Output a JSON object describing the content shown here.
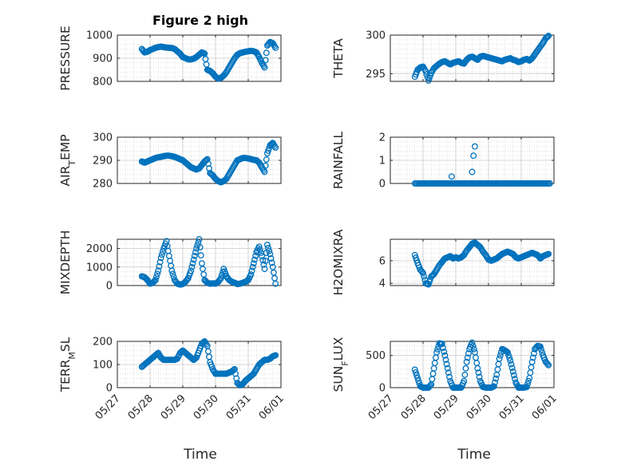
{
  "figure": {
    "title": "Figure 2 high",
    "xlabel": "Time"
  },
  "style": {
    "marker_color": "#0072bd",
    "grid_color": "#b0b0b0",
    "axis_color": "#262626"
  },
  "xaxis": {
    "range": [
      "05/27",
      "06/01"
    ],
    "ticks": [
      "05/27",
      "05/28",
      "05/29",
      "05/30",
      "05/31",
      "06/01"
    ],
    "data_start": "05/27 18:00",
    "data_end": "05/31 21:00"
  },
  "chart_data": [
    {
      "type": "scatter",
      "name": "pressure",
      "ylabel": "PRESSURE",
      "ylim": [
        800,
        1000
      ],
      "yticks": [
        "800",
        "900",
        "1000"
      ],
      "grid": true,
      "x": [
        "05/27 18:00",
        "05/27 20:00",
        "05/27 22:00",
        "05/28 00:00",
        "05/28 02:00",
        "05/28 04:00",
        "05/28 06:00",
        "05/28 08:00",
        "05/28 10:00",
        "05/28 12:00",
        "05/28 14:00",
        "05/28 16:00",
        "05/28 18:00",
        "05/28 20:00",
        "05/28 22:00",
        "05/29 00:00",
        "05/29 02:00",
        "05/29 04:00",
        "05/29 06:00",
        "05/29 08:00",
        "05/29 10:00",
        "05/29 12:00",
        "05/29 14:00",
        "05/29 16:00",
        "05/29 18:00",
        "05/29 20:00",
        "05/29 22:00",
        "05/30 00:00",
        "05/30 02:00",
        "05/30 04:00",
        "05/30 06:00",
        "05/30 08:00",
        "05/30 10:00",
        "05/30 12:00",
        "05/30 14:00",
        "05/30 16:00",
        "05/30 18:00",
        "05/30 20:00",
        "05/30 22:00",
        "05/31 00:00",
        "05/31 02:00",
        "05/31 04:00",
        "05/31 06:00",
        "05/31 08:00",
        "05/31 10:00",
        "05/31 12:00",
        "05/31 14:00",
        "05/31 16:00",
        "05/31 18:00",
        "05/31 20:00"
      ],
      "y": [
        940,
        925,
        928,
        935,
        940,
        945,
        948,
        950,
        948,
        946,
        945,
        944,
        940,
        930,
        920,
        905,
        900,
        895,
        895,
        898,
        905,
        915,
        925,
        920,
        850,
        845,
        835,
        820,
        812,
        815,
        825,
        840,
        860,
        880,
        900,
        915,
        922,
        925,
        928,
        930,
        932,
        930,
        925,
        905,
        880,
        860,
        955,
        970,
        965,
        945
      ]
    },
    {
      "type": "scatter",
      "name": "theta",
      "ylabel": "THETA",
      "ylim": [
        294,
        300
      ],
      "yticks": [
        "295",
        "300"
      ],
      "grid": true,
      "x": [
        "05/27 18:00",
        "05/27 20:00",
        "05/27 22:00",
        "05/28 00:00",
        "05/28 02:00",
        "05/28 04:00",
        "05/28 06:00",
        "05/28 08:00",
        "05/28 10:00",
        "05/28 12:00",
        "05/28 14:00",
        "05/28 16:00",
        "05/28 18:00",
        "05/28 20:00",
        "05/28 22:00",
        "05/29 00:00",
        "05/29 02:00",
        "05/29 04:00",
        "05/29 06:00",
        "05/29 08:00",
        "05/29 10:00",
        "05/29 12:00",
        "05/29 14:00",
        "05/29 16:00",
        "05/29 18:00",
        "05/29 20:00",
        "05/29 22:00",
        "05/30 00:00",
        "05/30 02:00",
        "05/30 04:00",
        "05/30 06:00",
        "05/30 08:00",
        "05/30 10:00",
        "05/30 12:00",
        "05/30 14:00",
        "05/30 16:00",
        "05/30 18:00",
        "05/30 20:00",
        "05/30 22:00",
        "05/31 00:00",
        "05/31 02:00",
        "05/31 04:00",
        "05/31 06:00",
        "05/31 08:00",
        "05/31 10:00",
        "05/31 12:00",
        "05/31 14:00",
        "05/31 16:00",
        "05/31 18:00",
        "05/31 20:00"
      ],
      "y": [
        294.6,
        295.5,
        295.8,
        295.9,
        295.3,
        294.1,
        295.1,
        295.7,
        296.0,
        296.3,
        296.5,
        296.6,
        296.4,
        296.2,
        296.4,
        296.5,
        296.6,
        296.4,
        296.3,
        296.8,
        297.1,
        297.2,
        297.0,
        296.8,
        297.2,
        297.3,
        297.2,
        297.1,
        297.0,
        296.9,
        296.8,
        296.7,
        296.6,
        296.8,
        296.9,
        297.0,
        296.8,
        296.7,
        296.5,
        296.6,
        296.8,
        296.9,
        296.7,
        297.0,
        297.5,
        298.0,
        298.5,
        299.0,
        299.6,
        299.9
      ]
    },
    {
      "type": "scatter",
      "name": "air_temp",
      "ylabel": "AIR_TEMP",
      "ylim": [
        280,
        300
      ],
      "yticks": [
        "280",
        "290",
        "300"
      ],
      "grid": true,
      "x": [
        "05/27 18:00",
        "05/27 20:00",
        "05/27 22:00",
        "05/28 00:00",
        "05/28 02:00",
        "05/28 04:00",
        "05/28 06:00",
        "05/28 08:00",
        "05/28 10:00",
        "05/28 12:00",
        "05/28 14:00",
        "05/28 16:00",
        "05/28 18:00",
        "05/28 20:00",
        "05/28 22:00",
        "05/29 00:00",
        "05/29 02:00",
        "05/29 04:00",
        "05/29 06:00",
        "05/29 08:00",
        "05/29 10:00",
        "05/29 12:00",
        "05/29 14:00",
        "05/29 16:00",
        "05/29 18:00",
        "05/29 20:00",
        "05/29 22:00",
        "05/30 00:00",
        "05/30 02:00",
        "05/30 04:00",
        "05/30 06:00",
        "05/30 08:00",
        "05/30 10:00",
        "05/30 12:00",
        "05/30 14:00",
        "05/30 16:00",
        "05/30 18:00",
        "05/30 20:00",
        "05/30 22:00",
        "05/31 00:00",
        "05/31 02:00",
        "05/31 04:00",
        "05/31 06:00",
        "05/31 08:00",
        "05/31 10:00",
        "05/31 12:00",
        "05/31 14:00",
        "05/31 16:00",
        "05/31 18:00",
        "05/31 20:00"
      ],
      "y": [
        289.5,
        289.0,
        289.5,
        290.0,
        290.5,
        291.0,
        291.3,
        291.5,
        291.8,
        292.0,
        292.0,
        291.8,
        291.5,
        291.0,
        290.5,
        290.0,
        289.0,
        288.0,
        287.0,
        286.5,
        286.0,
        286.5,
        288.0,
        289.5,
        290.5,
        284.5,
        283.5,
        282.0,
        281.0,
        280.5,
        281.0,
        282.0,
        284.0,
        286.0,
        288.0,
        290.0,
        290.5,
        291.0,
        291.0,
        290.8,
        290.5,
        290.2,
        290.0,
        289.0,
        287.0,
        285.0,
        293.0,
        296.5,
        297.5,
        295.5
      ]
    },
    {
      "type": "scatter",
      "name": "rainfall",
      "ylabel": "RAINFALL",
      "ylim": [
        0,
        2
      ],
      "yticks": [
        "0",
        "1",
        "2"
      ],
      "grid": true,
      "x_start": "05/27 18:00",
      "x_end": "05/31 21:00",
      "baseline": 0,
      "spikes": [
        {
          "x": "05/28 21:00",
          "y": 0.3
        },
        {
          "x": "05/29 12:00",
          "y": 0.5
        },
        {
          "x": "05/29 13:00",
          "y": 1.2
        },
        {
          "x": "05/29 14:00",
          "y": 1.6
        }
      ]
    },
    {
      "type": "scatter",
      "name": "mixdepth",
      "ylabel": "MIXDEPTH",
      "ylim": [
        0,
        2500
      ],
      "yticks": [
        "0",
        "1000",
        "2000"
      ],
      "grid": true,
      "x": [
        "05/27 18:00",
        "05/27 20:00",
        "05/27 22:00",
        "05/28 00:00",
        "05/28 02:00",
        "05/28 04:00",
        "05/28 06:00",
        "05/28 08:00",
        "05/28 10:00",
        "05/28 12:00",
        "05/28 14:00",
        "05/28 16:00",
        "05/28 18:00",
        "05/28 20:00",
        "05/28 22:00",
        "05/29 00:00",
        "05/29 02:00",
        "05/29 04:00",
        "05/29 06:00",
        "05/29 08:00",
        "05/29 10:00",
        "05/29 12:00",
        "05/29 14:00",
        "05/29 16:00",
        "05/29 18:00",
        "05/29 20:00",
        "05/29 22:00",
        "05/30 00:00",
        "05/30 02:00",
        "05/30 04:00",
        "05/30 06:00",
        "05/30 08:00",
        "05/30 10:00",
        "05/30 12:00",
        "05/30 14:00",
        "05/30 16:00",
        "05/30 18:00",
        "05/30 20:00",
        "05/30 22:00",
        "05/31 00:00",
        "05/31 02:00",
        "05/31 04:00",
        "05/31 06:00",
        "05/31 08:00",
        "05/31 10:00",
        "05/31 12:00",
        "05/31 14:00",
        "05/31 16:00",
        "05/31 18:00",
        "05/31 20:00"
      ],
      "y": [
        500,
        450,
        300,
        100,
        150,
        300,
        800,
        1500,
        2000,
        2400,
        1600,
        800,
        300,
        100,
        50,
        80,
        200,
        400,
        800,
        1400,
        2000,
        2500,
        1200,
        300,
        150,
        100,
        120,
        100,
        200,
        400,
        900,
        500,
        300,
        200,
        150,
        80,
        100,
        150,
        200,
        300,
        600,
        1200,
        1800,
        2100,
        1600,
        900,
        2200,
        1700,
        1000,
        100
      ]
    },
    {
      "type": "scatter",
      "name": "h2omixra",
      "ylabel": "H2OMIXRA",
      "ylim": [
        3.8,
        7.9
      ],
      "yticks": [
        "4",
        "6"
      ],
      "grid": true,
      "x": [
        "05/27 18:00",
        "05/27 20:00",
        "05/27 22:00",
        "05/28 00:00",
        "05/28 02:00",
        "05/28 04:00",
        "05/28 06:00",
        "05/28 08:00",
        "05/28 10:00",
        "05/28 12:00",
        "05/28 14:00",
        "05/28 16:00",
        "05/28 18:00",
        "05/28 20:00",
        "05/28 22:00",
        "05/29 00:00",
        "05/29 02:00",
        "05/29 04:00",
        "05/29 06:00",
        "05/29 08:00",
        "05/29 10:00",
        "05/29 12:00",
        "05/29 14:00",
        "05/29 16:00",
        "05/29 18:00",
        "05/29 20:00",
        "05/29 22:00",
        "05/30 00:00",
        "05/30 02:00",
        "05/30 04:00",
        "05/30 06:00",
        "05/30 08:00",
        "05/30 10:00",
        "05/30 12:00",
        "05/30 14:00",
        "05/30 16:00",
        "05/30 18:00",
        "05/30 20:00",
        "05/30 22:00",
        "05/31 00:00",
        "05/31 02:00",
        "05/31 04:00",
        "05/31 06:00",
        "05/31 08:00",
        "05/31 10:00",
        "05/31 12:00",
        "05/31 14:00",
        "05/31 16:00",
        "05/31 18:00",
        "05/31 20:00"
      ],
      "y": [
        6.5,
        5.8,
        5.2,
        4.9,
        4.0,
        3.9,
        4.6,
        4.8,
        5.2,
        5.6,
        5.9,
        6.2,
        6.3,
        6.4,
        6.2,
        6.3,
        6.2,
        6.3,
        6.5,
        6.9,
        7.2,
        7.5,
        7.6,
        7.4,
        7.2,
        6.8,
        6.5,
        6.1,
        6.0,
        6.1,
        6.2,
        6.4,
        6.6,
        6.7,
        6.8,
        6.7,
        6.6,
        6.3,
        6.2,
        6.3,
        6.4,
        6.5,
        6.6,
        6.7,
        6.6,
        6.5,
        6.2,
        6.4,
        6.5,
        6.6
      ]
    },
    {
      "type": "scatter",
      "name": "terr_msl",
      "ylabel": "TERR_MSL",
      "ylim": [
        0,
        200
      ],
      "yticks": [
        "0",
        "100",
        "200"
      ],
      "grid": true,
      "x": [
        "05/27 18:00",
        "05/27 20:00",
        "05/27 22:00",
        "05/28 00:00",
        "05/28 02:00",
        "05/28 04:00",
        "05/28 06:00",
        "05/28 08:00",
        "05/28 10:00",
        "05/28 12:00",
        "05/28 14:00",
        "05/28 16:00",
        "05/28 18:00",
        "05/28 20:00",
        "05/28 22:00",
        "05/29 00:00",
        "05/29 02:00",
        "05/29 04:00",
        "05/29 06:00",
        "05/29 08:00",
        "05/29 10:00",
        "05/29 12:00",
        "05/29 14:00",
        "05/29 16:00",
        "05/29 18:00",
        "05/29 20:00",
        "05/29 22:00",
        "05/30 00:00",
        "05/30 02:00",
        "05/30 04:00",
        "05/30 06:00",
        "05/30 08:00",
        "05/30 10:00",
        "05/30 12:00",
        "05/30 14:00",
        "05/30 16:00",
        "05/30 18:00",
        "05/30 20:00",
        "05/30 22:00",
        "05/31 00:00",
        "05/31 02:00",
        "05/31 04:00",
        "05/31 06:00",
        "05/31 08:00",
        "05/31 10:00",
        "05/31 12:00",
        "05/31 14:00",
        "05/31 16:00",
        "05/31 18:00",
        "05/31 20:00"
      ],
      "y": [
        90,
        100,
        110,
        120,
        130,
        140,
        150,
        130,
        120,
        120,
        120,
        120,
        120,
        125,
        150,
        160,
        150,
        140,
        130,
        120,
        130,
        160,
        190,
        200,
        180,
        110,
        80,
        60,
        60,
        60,
        60,
        60,
        65,
        70,
        80,
        20,
        10,
        15,
        30,
        40,
        50,
        60,
        80,
        100,
        110,
        120,
        120,
        125,
        135,
        140
      ]
    },
    {
      "type": "scatter",
      "name": "sun_flux",
      "ylabel": "SUN_FLUX",
      "ylim": [
        0,
        720
      ],
      "yticks": [
        "0",
        "500"
      ],
      "grid": true,
      "x": [
        "05/27 18:00",
        "05/27 20:00",
        "05/27 22:00",
        "05/28 00:00",
        "05/28 02:00",
        "05/28 04:00",
        "05/28 06:00",
        "05/28 08:00",
        "05/28 10:00",
        "05/28 12:00",
        "05/28 14:00",
        "05/28 16:00",
        "05/28 18:00",
        "05/28 20:00",
        "05/28 22:00",
        "05/29 00:00",
        "05/29 02:00",
        "05/29 04:00",
        "05/29 06:00",
        "05/29 08:00",
        "05/29 10:00",
        "05/29 12:00",
        "05/29 14:00",
        "05/29 16:00",
        "05/29 18:00",
        "05/29 20:00",
        "05/29 22:00",
        "05/30 00:00",
        "05/30 02:00",
        "05/30 04:00",
        "05/30 06:00",
        "05/30 08:00",
        "05/30 10:00",
        "05/30 12:00",
        "05/30 14:00",
        "05/30 16:00",
        "05/30 18:00",
        "05/30 20:00",
        "05/30 22:00",
        "05/31 00:00",
        "05/31 02:00",
        "05/31 04:00",
        "05/31 06:00",
        "05/31 08:00",
        "05/31 10:00",
        "05/31 12:00",
        "05/31 14:00",
        "05/31 16:00",
        "05/31 18:00",
        "05/31 20:00"
      ],
      "y": [
        280,
        150,
        20,
        0,
        0,
        0,
        50,
        300,
        550,
        690,
        680,
        500,
        300,
        100,
        0,
        0,
        0,
        0,
        100,
        400,
        600,
        700,
        550,
        300,
        100,
        10,
        0,
        0,
        0,
        20,
        200,
        450,
        600,
        580,
        550,
        420,
        250,
        80,
        0,
        0,
        0,
        10,
        150,
        400,
        600,
        650,
        640,
        500,
        400,
        350
      ]
    }
  ]
}
